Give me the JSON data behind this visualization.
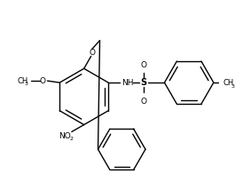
{
  "background": "#ffffff",
  "line_color": "#000000",
  "lw": 1.0,
  "figsize": [
    2.65,
    2.05
  ],
  "dpi": 100,
  "xlim": [
    0,
    265
  ],
  "ylim": [
    0,
    205
  ]
}
